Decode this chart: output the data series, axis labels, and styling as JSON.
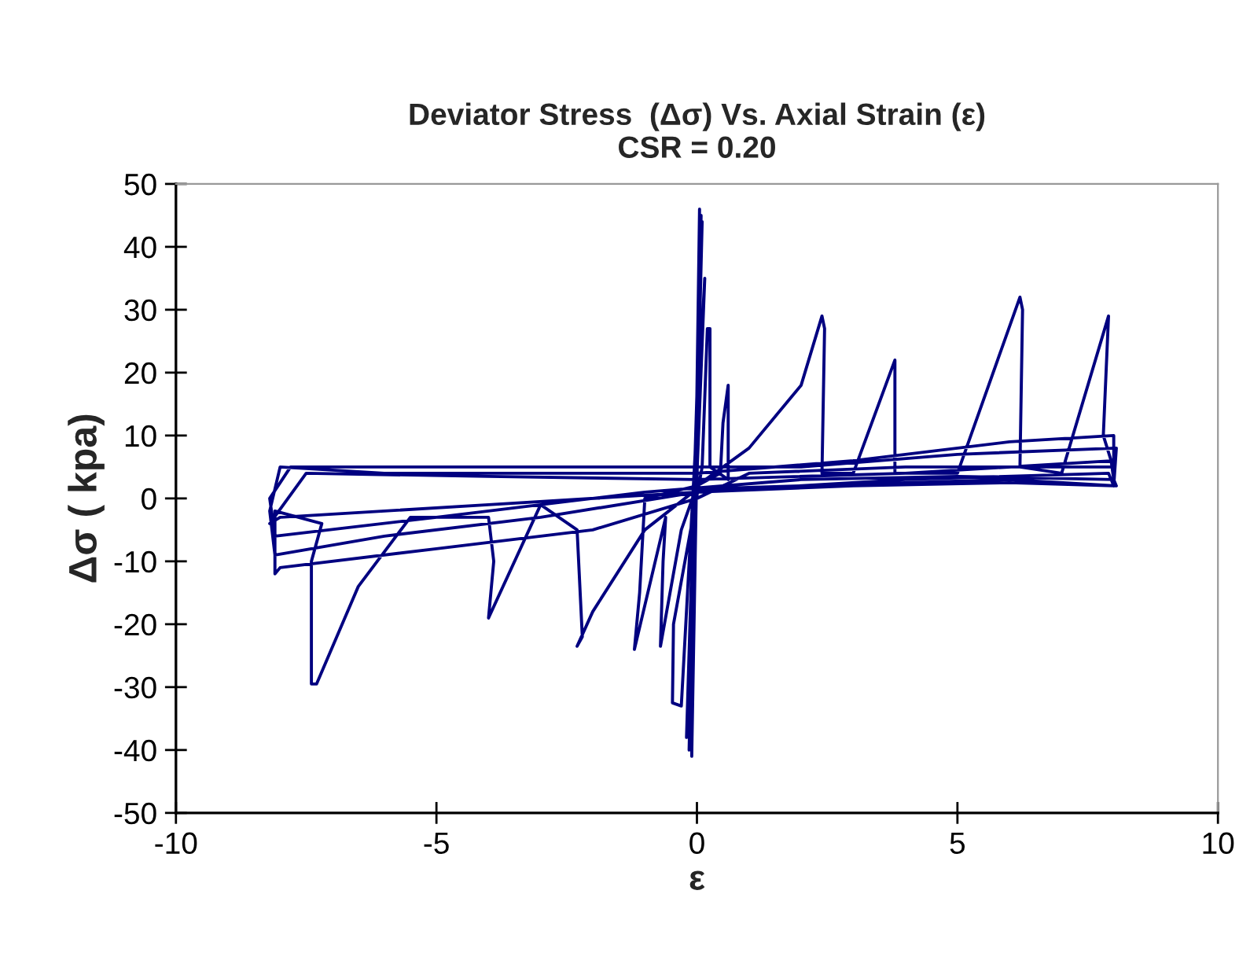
{
  "chart_data": {
    "type": "line",
    "title": "Deviator Stress  (Δσ) Vs. Axial Strain (ε)\nCSR = 0.20",
    "xlabel": "ε",
    "ylabel": "Δσ ( kpa)",
    "series": [
      {
        "color": "#000080",
        "x": [
          0,
          0.05,
          -0.1,
          0.08,
          -0.15,
          0.1,
          -0.2,
          0.15,
          -0.3,
          -0.47,
          -0.45,
          0.1,
          0.2,
          0.25,
          0.25,
          0.6,
          0.6,
          0.5,
          0.45,
          0,
          -0.3,
          -0.7,
          -0.65,
          -0.6,
          -1.2,
          -1.1,
          -1.0,
          0,
          1,
          2,
          2.4,
          2.45,
          2.4,
          3,
          3.8,
          3.8,
          5,
          6.2,
          6.25,
          6.2,
          7,
          7.9,
          7.8,
          7.95,
          8,
          8.05,
          6,
          4,
          2,
          0,
          -1,
          -2,
          -2.3,
          -2.2,
          -2.3,
          -3,
          -4,
          -3.9,
          -4,
          -5.5,
          -6.5,
          -7.3,
          -7.4,
          -7.4,
          -7.2,
          -8.1,
          -8.1,
          -8,
          -5,
          -2,
          0,
          1,
          4,
          8,
          8,
          6,
          3,
          0,
          -3,
          -6,
          -8,
          -8.2,
          -8.1,
          -6,
          -3,
          0,
          3,
          6,
          8,
          8.05,
          5,
          2,
          -2,
          -6,
          -7.8,
          -8.2,
          -8.1,
          -5,
          -1,
          2,
          5,
          8,
          8,
          4,
          0,
          -4,
          -7.5,
          -8.2,
          -8,
          -4,
          0,
          4,
          7.9,
          8
        ],
        "values": [
          0,
          46,
          -41,
          45,
          -40,
          44,
          -38,
          35,
          -33,
          -32.5,
          -20,
          5,
          27,
          27,
          5,
          3,
          18,
          12,
          4,
          2,
          -5,
          -23.5,
          -10,
          -3,
          -24,
          -15,
          0,
          2,
          8,
          18,
          29,
          27,
          4,
          4,
          22,
          4,
          4,
          32,
          30,
          5,
          4,
          29,
          10,
          6,
          3,
          2,
          3,
          2.5,
          2,
          1.5,
          -5,
          -18,
          -23.5,
          -22,
          -5,
          -1,
          -19,
          -10,
          -3,
          -3,
          -14,
          -29.5,
          -29.5,
          -10,
          -4,
          -2,
          -12,
          -11,
          -8,
          -5,
          0,
          4,
          5,
          5,
          10,
          9,
          6,
          4,
          4,
          4,
          5,
          -2,
          -9,
          -6,
          -3,
          1,
          2,
          2.5,
          2,
          8,
          7,
          5,
          5,
          5,
          5,
          0,
          -6,
          -3,
          1,
          3,
          3.5,
          3,
          6,
          4,
          3,
          3.5,
          4,
          -4,
          -3,
          -1,
          1,
          3,
          4,
          2
        ]
      }
    ],
    "xlim": [
      -10,
      10
    ],
    "ylim": [
      -50,
      50
    ],
    "xticks": [
      -10,
      -5,
      0,
      5,
      10
    ],
    "yticks": [
      -50,
      -40,
      -30,
      -20,
      -10,
      0,
      10,
      20,
      30,
      40,
      50
    ],
    "grid": false,
    "marker": "none",
    "line_style": "solid"
  }
}
